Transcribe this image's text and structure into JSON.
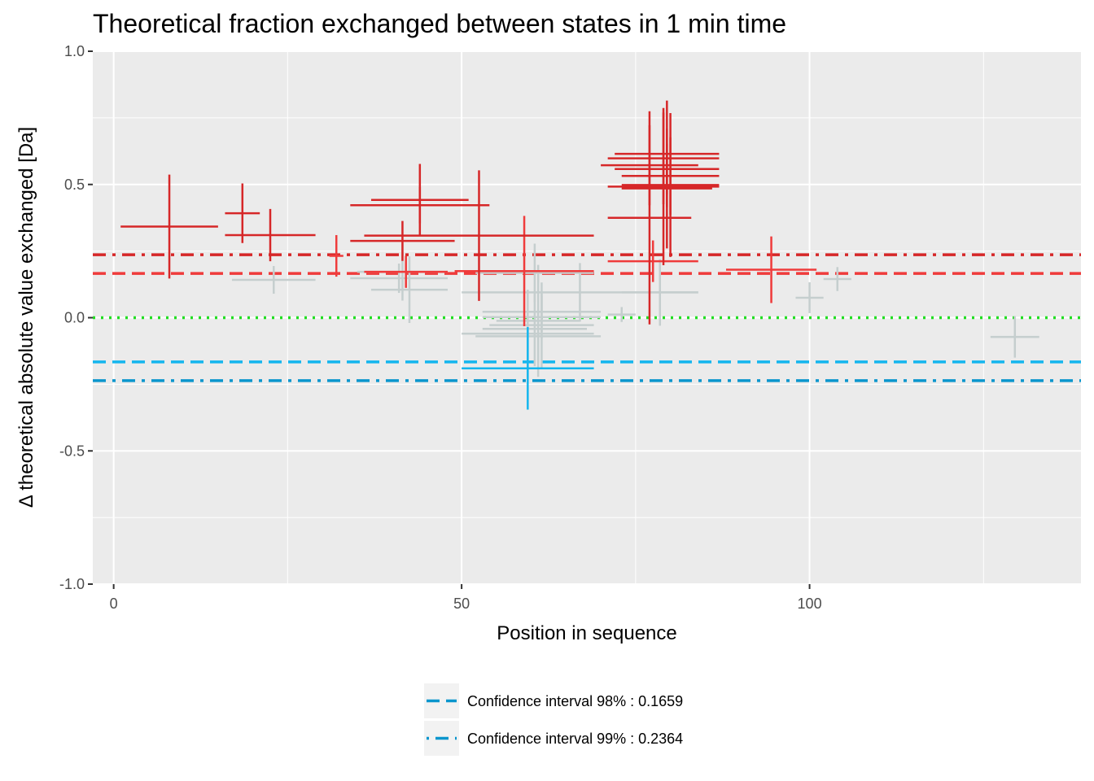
{
  "chart_data": {
    "type": "scatter",
    "title": "Theoretical fraction exchanged between states in 1 min time",
    "xlabel": "Position in sequence",
    "ylabel": "Δ theoretical absolute value exchanged [Da]",
    "xlim": [
      -3,
      139
    ],
    "ylim": [
      -1.0,
      1.0
    ],
    "x_ticks": [
      0,
      50,
      100
    ],
    "x_tick_labels": [
      "0",
      "50",
      "100"
    ],
    "y_ticks": [
      -1.0,
      -0.5,
      0.0,
      0.5,
      1.0
    ],
    "y_tick_labels": [
      "-1.0",
      "-0.5",
      "0.0",
      "0.5",
      "1.0"
    ],
    "grid": true,
    "legend_position": "bottom",
    "colors": {
      "panel": "#ebebeb",
      "grid": "#ffffff",
      "significant_99": "#d62728",
      "significant_98": "#ef3b3b",
      "not_significant": "#c5cece",
      "negative_98": "#14b6ee",
      "cutoff_99": "#d62728",
      "cutoff_98": "#ef3b3b",
      "neg_cutoff_98": "#14b6ee",
      "neg_cutoff_99": "#0a96cd",
      "zero_line": "#22dd22",
      "legend_key_bg": "#f2f2f2",
      "legend_line": "#0a96cd"
    },
    "reference_lines": [
      {
        "y": 0.2364,
        "style": "dashdot",
        "color_key": "cutoff_99"
      },
      {
        "y": 0.1659,
        "style": "dashed",
        "color_key": "cutoff_98"
      },
      {
        "y": 0.0,
        "style": "dotted",
        "color_key": "zero_line"
      },
      {
        "y": -0.1659,
        "style": "dashed",
        "color_key": "neg_cutoff_98"
      },
      {
        "y": -0.2364,
        "style": "dashdot",
        "color_key": "neg_cutoff_99"
      }
    ],
    "legend": [
      {
        "label": "Confidence interval 98% : 0.1659",
        "style": "dashed"
      },
      {
        "label": "Confidence interval 99% : 0.2364",
        "style": "dotdash"
      }
    ],
    "points": [
      {
        "start": 1,
        "end": 15,
        "value": 0.342,
        "err": 0.195,
        "cls": "significant_99"
      },
      {
        "start": 16,
        "end": 21,
        "value": 0.392,
        "err": 0.112,
        "cls": "significant_99"
      },
      {
        "start": 16,
        "end": 29,
        "value": 0.31,
        "err": 0.098,
        "cls": "significant_99"
      },
      {
        "start": 17,
        "end": 29,
        "value": 0.142,
        "err": 0.052,
        "cls": "not_significant"
      },
      {
        "start": 31,
        "end": 33,
        "value": 0.232,
        "err": 0.078,
        "cls": "significant_98"
      },
      {
        "start": 34,
        "end": 54,
        "value": 0.422,
        "err": 0.068,
        "cls": "significant_99"
      },
      {
        "start": 37,
        "end": 51,
        "value": 0.442,
        "err": 0.135,
        "cls": "significant_99"
      },
      {
        "start": 34,
        "end": 49,
        "value": 0.288,
        "err": 0.075,
        "cls": "significant_99"
      },
      {
        "start": 36,
        "end": 69,
        "value": 0.308,
        "err": 0.245,
        "cls": "significant_99"
      },
      {
        "start": 36,
        "end": 48,
        "value": 0.172,
        "err": 0.06,
        "cls": "significant_98"
      },
      {
        "start": 34,
        "end": 48,
        "value": 0.148,
        "err": 0.055,
        "cls": "not_significant"
      },
      {
        "start": 35,
        "end": 48,
        "value": 0.172,
        "err": 0.108,
        "cls": "not_significant"
      },
      {
        "start": 37,
        "end": 48,
        "value": 0.105,
        "err": 0.125,
        "cls": "not_significant"
      },
      {
        "start": 49,
        "end": 69,
        "value": 0.175,
        "err": 0.207,
        "cls": "significant_98"
      },
      {
        "start": 52,
        "end": 69,
        "value": 0.168,
        "err": 0.11,
        "cls": "not_significant"
      },
      {
        "start": 50,
        "end": 84,
        "value": 0.095,
        "err": 0.11,
        "cls": "not_significant"
      },
      {
        "start": 53,
        "end": 70,
        "value": 0.022,
        "err": 0.075,
        "cls": "not_significant"
      },
      {
        "start": 53,
        "end": 70,
        "value": 0.002,
        "err": 0.08,
        "cls": "not_significant"
      },
      {
        "start": 55,
        "end": 67,
        "value": -0.012,
        "err": 0.21,
        "cls": "not_significant"
      },
      {
        "start": 54,
        "end": 69,
        "value": -0.028,
        "err": 0.16,
        "cls": "not_significant"
      },
      {
        "start": 53,
        "end": 68,
        "value": -0.042,
        "err": 0.14,
        "cls": "not_significant"
      },
      {
        "start": 50,
        "end": 69,
        "value": -0.06,
        "err": 0.165,
        "cls": "not_significant"
      },
      {
        "start": 52,
        "end": 70,
        "value": -0.07,
        "err": 0.1,
        "cls": "not_significant"
      },
      {
        "start": 50,
        "end": 69,
        "value": -0.19,
        "err": 0.155,
        "cls": "negative_98"
      },
      {
        "start": 71,
        "end": 75,
        "value": 0.012,
        "err": 0.028,
        "cls": "not_significant"
      },
      {
        "start": 71,
        "end": 84,
        "value": 0.212,
        "err": 0.078,
        "cls": "significant_98"
      },
      {
        "start": 71,
        "end": 83,
        "value": 0.375,
        "err": 0.4,
        "cls": "significant_99"
      },
      {
        "start": 70,
        "end": 84,
        "value": 0.572,
        "err": 0.15,
        "cls": "significant_99"
      },
      {
        "start": 71,
        "end": 87,
        "value": 0.598,
        "err": 0.172,
        "cls": "significant_99"
      },
      {
        "start": 72,
        "end": 87,
        "value": 0.615,
        "err": 0.2,
        "cls": "significant_99"
      },
      {
        "start": 72,
        "end": 87,
        "value": 0.558,
        "err": 0.095,
        "cls": "significant_99"
      },
      {
        "start": 73,
        "end": 87,
        "value": 0.532,
        "err": 0.145,
        "cls": "significant_99"
      },
      {
        "start": 73,
        "end": 87,
        "value": 0.498,
        "err": 0.27,
        "cls": "significant_99"
      },
      {
        "start": 73,
        "end": 86,
        "value": 0.485,
        "err": 0.225,
        "cls": "significant_99"
      },
      {
        "start": 71,
        "end": 87,
        "value": 0.492,
        "err": 0.295,
        "cls": "significant_99"
      },
      {
        "start": 73,
        "end": 84,
        "value": 0.095,
        "err": 0.125,
        "cls": "not_significant"
      },
      {
        "start": 88,
        "end": 101,
        "value": 0.18,
        "err": 0.125,
        "cls": "significant_98"
      },
      {
        "start": 98,
        "end": 102,
        "value": 0.075,
        "err": 0.058,
        "cls": "not_significant"
      },
      {
        "start": 102,
        "end": 106,
        "value": 0.145,
        "err": 0.045,
        "cls": "not_significant"
      },
      {
        "start": 126,
        "end": 133,
        "value": -0.072,
        "err": 0.078,
        "cls": "not_significant"
      }
    ]
  }
}
